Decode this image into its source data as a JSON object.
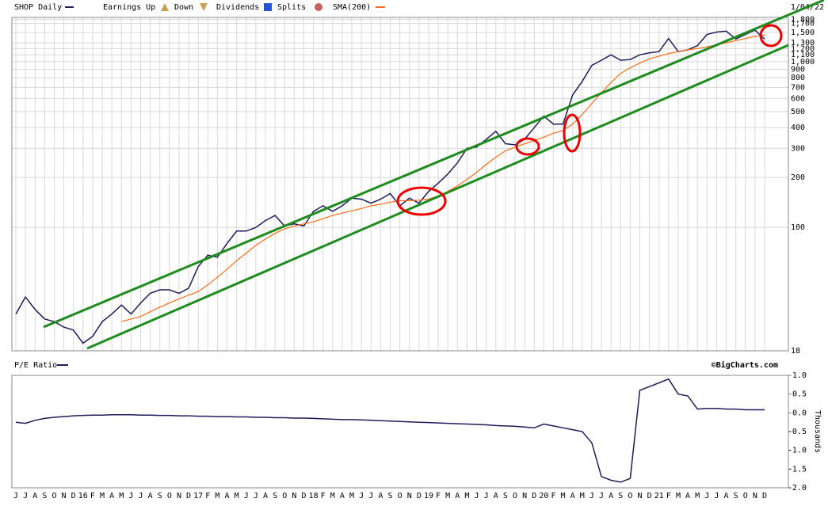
{
  "legend": {
    "symbol": "SHOP Daily",
    "earnings_up": "Earnings Up",
    "down": "Down",
    "dividends": "Dividends",
    "splits": "Splits",
    "sma": "SMA(200)",
    "date": "1/04/22"
  },
  "chart_data": [
    {
      "type": "line",
      "log_scale": true,
      "ylim": [
        18,
        1850
      ],
      "yticks": [
        {
          "value": 1800,
          "label": "1,800"
        },
        {
          "value": 1700,
          "label": "1,700"
        },
        {
          "value": 1500,
          "label": "1,500"
        },
        {
          "value": 1300,
          "label": "1,300"
        },
        {
          "value": 1200,
          "label": "1,200"
        },
        {
          "value": 1100,
          "label": "1,100"
        },
        {
          "value": 1000,
          "label": "1,000"
        },
        900,
        800,
        700,
        600,
        500,
        400,
        300,
        200,
        100,
        18
      ],
      "series": [
        {
          "name": "SHOP Daily",
          "color": "#1c1c5c",
          "values": [
            30,
            38,
            32,
            28,
            27,
            25,
            24,
            20,
            22,
            27,
            30,
            34,
            30,
            35,
            40,
            42,
            42,
            40,
            43,
            58,
            68,
            66,
            80,
            95,
            95,
            100,
            110,
            118,
            102,
            105,
            102,
            125,
            135,
            125,
            135,
            150,
            148,
            140,
            148,
            160,
            135,
            150,
            140,
            165,
            185,
            210,
            245,
            300,
            305,
            340,
            380,
            320,
            315,
            340,
            400,
            470,
            420,
            420,
            630,
            760,
            950,
            1020,
            1100,
            1020,
            1030,
            1100,
            1130,
            1150,
            1380,
            1150,
            1180,
            1250,
            1460,
            1510,
            1530,
            1370,
            1460,
            1550,
            1370
          ]
        },
        {
          "name": "SMA(200)",
          "color": "#ff6a13",
          "values": [
            null,
            null,
            null,
            null,
            null,
            null,
            null,
            null,
            null,
            null,
            null,
            27,
            28,
            29,
            31,
            33,
            35,
            37,
            39,
            41,
            45,
            50,
            56,
            63,
            70,
            78,
            85,
            92,
            98,
            102,
            105,
            108,
            113,
            118,
            122,
            126,
            130,
            135,
            138,
            142,
            145,
            145,
            146,
            148,
            155,
            165,
            178,
            195,
            215,
            240,
            265,
            290,
            305,
            320,
            335,
            350,
            370,
            385,
            420,
            480,
            560,
            650,
            750,
            850,
            920,
            980,
            1040,
            1080,
            1120,
            1150,
            1180,
            1200,
            1230,
            1260,
            1300,
            1340,
            1380,
            1420,
            1450
          ]
        }
      ]
    },
    {
      "type": "line",
      "title": "P/E Ratio",
      "source": "©BigCharts.com",
      "y_label": "Thousands",
      "ylim": [
        -2.0,
        1.0
      ],
      "yticks": [
        {
          "value": 1.0,
          "label": "1.0"
        },
        0.5,
        {
          "value": 0.0,
          "label": "0.0"
        },
        -0.5,
        {
          "value": -1.0,
          "label": "-1.0"
        },
        -1.5,
        {
          "value": -2.0,
          "label": "-2.0"
        }
      ],
      "categories": [
        "J",
        "J",
        "A",
        "S",
        "O",
        "N",
        "D",
        "16",
        "F",
        "M",
        "A",
        "M",
        "J",
        "J",
        "A",
        "S",
        "O",
        "N",
        "D",
        "17",
        "F",
        "M",
        "A",
        "M",
        "J",
        "J",
        "A",
        "S",
        "O",
        "N",
        "D",
        "18",
        "F",
        "M",
        "A",
        "M",
        "J",
        "J",
        "A",
        "S",
        "O",
        "N",
        "D",
        "19",
        "F",
        "M",
        "A",
        "M",
        "J",
        "J",
        "A",
        "S",
        "O",
        "N",
        "D",
        "20",
        "F",
        "M",
        "A",
        "M",
        "J",
        "J",
        "A",
        "S",
        "O",
        "N",
        "D",
        "21",
        "F",
        "M",
        "A",
        "M",
        "J",
        "J",
        "A",
        "S",
        "O",
        "N",
        "D"
      ],
      "series": [
        {
          "name": "P/E Ratio",
          "color": "#1c1c5c",
          "values": [
            -0.25,
            -0.28,
            -0.2,
            -0.15,
            -0.12,
            -0.1,
            -0.08,
            -0.07,
            -0.06,
            -0.06,
            -0.05,
            -0.05,
            -0.05,
            -0.06,
            -0.06,
            -0.07,
            -0.07,
            -0.08,
            -0.08,
            -0.09,
            -0.09,
            -0.1,
            -0.1,
            -0.11,
            -0.11,
            -0.12,
            -0.12,
            -0.13,
            -0.13,
            -0.14,
            -0.14,
            -0.15,
            -0.16,
            -0.17,
            -0.18,
            -0.18,
            -0.19,
            -0.2,
            -0.21,
            -0.22,
            -0.23,
            -0.24,
            -0.25,
            -0.26,
            -0.27,
            -0.28,
            -0.29,
            -0.3,
            -0.31,
            -0.32,
            -0.34,
            -0.35,
            -0.36,
            -0.38,
            -0.4,
            -0.3,
            -0.35,
            -0.4,
            -0.45,
            -0.5,
            -0.8,
            -1.7,
            -1.8,
            -1.85,
            -1.75,
            0.6,
            0.7,
            0.8,
            0.9,
            0.5,
            0.45,
            0.1,
            0.12,
            0.12,
            0.1,
            0.1,
            0.08,
            0.08,
            0.08
          ]
        }
      ]
    }
  ]
}
